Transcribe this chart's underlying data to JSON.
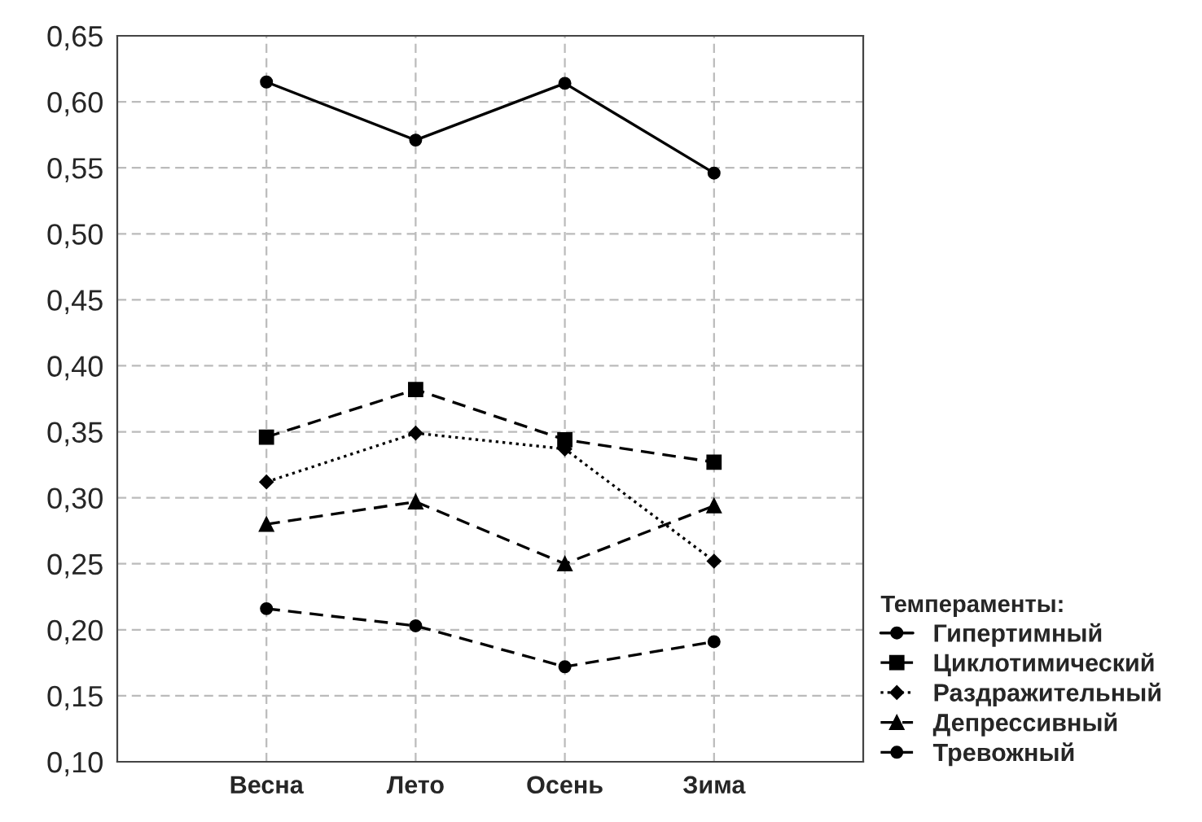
{
  "chart_data": {
    "type": "line",
    "categories": [
      "Весна",
      "Лето",
      "Осень",
      "Зима"
    ],
    "series": [
      {
        "name": "Гипертимный",
        "color": "#000000",
        "values": [
          0.615,
          0.571,
          0.614,
          0.546
        ],
        "marker": "circle",
        "line_style": "solid"
      },
      {
        "name": "Циклотимический",
        "color": "#000000",
        "values": [
          0.346,
          0.382,
          0.344,
          0.327
        ],
        "marker": "square",
        "line_style": "dashed"
      },
      {
        "name": "Раздражительный",
        "color": "#000000",
        "values": [
          0.312,
          0.349,
          0.337,
          0.252
        ],
        "marker": "diamond",
        "line_style": "dotted"
      },
      {
        "name": "Депрессивный",
        "color": "#000000",
        "values": [
          0.28,
          0.297,
          0.25,
          0.294
        ],
        "marker": "triangle",
        "line_style": "dashed"
      },
      {
        "name": "Тревожный",
        "color": "#000000",
        "values": [
          0.216,
          0.203,
          0.172,
          0.191
        ],
        "marker": "circle",
        "line_style": "dashed"
      }
    ],
    "ylim": [
      0.1,
      0.65
    ],
    "yticks": [
      {
        "value": 0.1,
        "label": "0,10"
      },
      {
        "value": 0.15,
        "label": "0,15"
      },
      {
        "value": 0.2,
        "label": "0,20"
      },
      {
        "value": 0.25,
        "label": "0,25"
      },
      {
        "value": 0.3,
        "label": "0,30"
      },
      {
        "value": 0.35,
        "label": "0,35"
      },
      {
        "value": 0.4,
        "label": "0,40"
      },
      {
        "value": 0.45,
        "label": "0,45"
      },
      {
        "value": 0.5,
        "label": "0,50"
      },
      {
        "value": 0.55,
        "label": "0,55"
      },
      {
        "value": 0.6,
        "label": "0,60"
      },
      {
        "value": 0.65,
        "label": "0,65"
      }
    ],
    "legend_title": "Темпераменты:",
    "legend": "bottom right",
    "grid": true
  }
}
